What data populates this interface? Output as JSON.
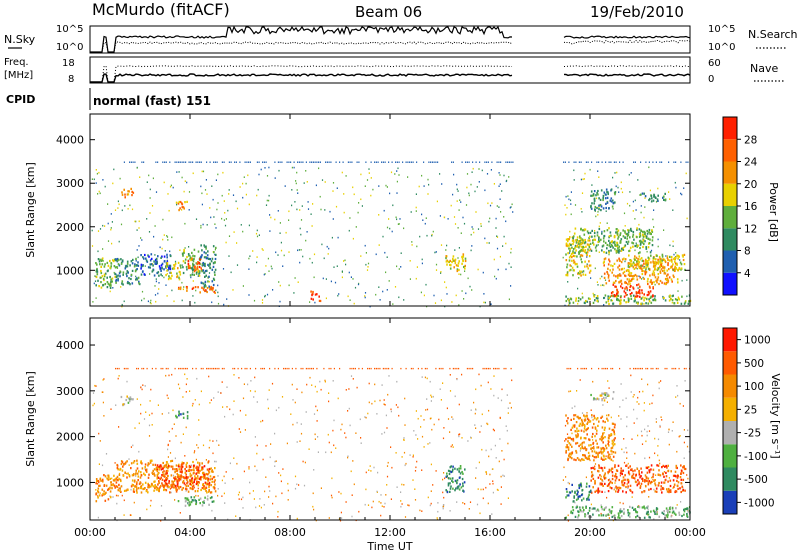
{
  "header": {
    "station": "McMurdo (fitACF)",
    "beam": "Beam 06",
    "date": "19/Feb/2010"
  },
  "strips": {
    "nsky_label": "N.Sky",
    "nsky_ticks": [
      "10^5",
      "10^0"
    ],
    "nsearch_label": "N.Search",
    "nsearch_ticks": [
      "10^5",
      "10^0"
    ],
    "freq_label": "Freq.",
    "freq_unit": "[MHz]",
    "freq_ticks": [
      "18",
      "8"
    ],
    "nave_label": "Nave",
    "nave_ticks": [
      "60",
      "0"
    ],
    "cpid_label": "CPID",
    "cpid_value": "normal (fast) 151"
  },
  "chart_data": [
    {
      "type": "heatmap",
      "name": "power",
      "ylabel": "Slant Range [km]",
      "ylim": [
        180,
        4590
      ],
      "yticks": [
        "1000",
        "2000",
        "3000",
        "4000"
      ],
      "xlabel": "",
      "colorbar": {
        "label": "Power [dB]",
        "ticks": [
          "4",
          "8",
          "12",
          "16",
          "20",
          "24",
          "28"
        ],
        "colors": [
          "#1010ff",
          "#1f5fb0",
          "#2f8a60",
          "#5fae3c",
          "#e8d000",
          "#f59000",
          "#ff6000",
          "#ff2000"
        ]
      },
      "regions": [
        {
          "t": [
            0.2,
            1.0
          ],
          "r": [
            600,
            1300
          ],
          "level": 3
        },
        {
          "t": [
            1.0,
            2.0
          ],
          "r": [
            700,
            1300
          ],
          "level": 2
        },
        {
          "t": [
            1.2,
            1.7
          ],
          "r": [
            2700,
            2900
          ],
          "level": 5
        },
        {
          "t": [
            2.0,
            3.2
          ],
          "r": [
            900,
            1400
          ],
          "level": 1
        },
        {
          "t": [
            3.0,
            3.6
          ],
          "r": [
            800,
            1200
          ],
          "level": 4
        },
        {
          "t": [
            3.4,
            3.9
          ],
          "r": [
            2400,
            2600
          ],
          "level": 5
        },
        {
          "t": [
            3.6,
            4.4
          ],
          "r": [
            900,
            1500
          ],
          "level": 3
        },
        {
          "t": [
            3.9,
            4.5
          ],
          "r": [
            1000,
            1300
          ],
          "level": 6
        },
        {
          "t": [
            4.4,
            5.0
          ],
          "r": [
            600,
            1600
          ],
          "level": 2
        },
        {
          "t": [
            3.5,
            5.0
          ],
          "r": [
            500,
            650
          ],
          "level": 6
        },
        {
          "t": [
            14.2,
            15.0
          ],
          "r": [
            1000,
            1400
          ],
          "level": 4
        },
        {
          "t": [
            19.0,
            20.0
          ],
          "r": [
            900,
            1800
          ],
          "level": 4
        },
        {
          "t": [
            19.2,
            22.5
          ],
          "r": [
            1400,
            2000
          ],
          "level": 3
        },
        {
          "t": [
            20.0,
            21.0
          ],
          "r": [
            2400,
            2900
          ],
          "level": 2
        },
        {
          "t": [
            20.5,
            23.5
          ],
          "r": [
            700,
            1300
          ],
          "level": 5
        },
        {
          "t": [
            21.5,
            23.8
          ],
          "r": [
            1000,
            1400
          ],
          "level": 4
        },
        {
          "t": [
            20.8,
            22.5
          ],
          "r": [
            400,
            700
          ],
          "level": 7
        },
        {
          "t": [
            19.0,
            24.0
          ],
          "r": [
            250,
            450
          ],
          "level": 3
        },
        {
          "t": [
            22.0,
            23.0
          ],
          "r": [
            2600,
            2800
          ],
          "level": 2
        },
        {
          "t": [
            8.8,
            9.2
          ],
          "r": [
            300,
            550
          ],
          "level": 7
        }
      ]
    },
    {
      "type": "heatmap",
      "name": "velocity",
      "ylabel": "Slant Range [km]",
      "ylim": [
        180,
        4590
      ],
      "yticks": [
        "1000",
        "2000",
        "3000",
        "4000"
      ],
      "xlabel": "Time UT",
      "xticks": [
        "00:00",
        "04:00",
        "08:00",
        "12:00",
        "16:00",
        "20:00",
        "00:00"
      ],
      "colorbar": {
        "label": "Velocity [m s⁻¹]",
        "ticks": [
          "1000",
          "500",
          "100",
          "25",
          "-25",
          "-100",
          "-500",
          "-1000"
        ],
        "colors": [
          "#1a3fb8",
          "#2f8a60",
          "#4fb040",
          "#b0b0b0",
          "#f5b000",
          "#f58a00",
          "#ff5a00",
          "#ff1800"
        ]
      },
      "regions": [
        {
          "t": [
            0.2,
            1.0
          ],
          "r": [
            600,
            1200
          ],
          "level": 5
        },
        {
          "t": [
            1.0,
            5.0
          ],
          "r": [
            800,
            1500
          ],
          "level": 5
        },
        {
          "t": [
            2.5,
            4.8
          ],
          "r": [
            900,
            1400
          ],
          "level": 6
        },
        {
          "t": [
            3.4,
            3.9
          ],
          "r": [
            2400,
            2600
          ],
          "level": 1
        },
        {
          "t": [
            1.2,
            1.7
          ],
          "r": [
            2700,
            2900
          ],
          "level": 3
        },
        {
          "t": [
            3.5,
            5.0
          ],
          "r": [
            500,
            700
          ],
          "level": 2
        },
        {
          "t": [
            14.2,
            15.0
          ],
          "r": [
            800,
            1400
          ],
          "level": 1
        },
        {
          "t": [
            19.0,
            21.0
          ],
          "r": [
            1500,
            2500
          ],
          "level": 5
        },
        {
          "t": [
            20.0,
            23.8
          ],
          "r": [
            800,
            1400
          ],
          "level": 6
        },
        {
          "t": [
            19.0,
            24.0
          ],
          "r": [
            250,
            500
          ],
          "level": 2
        },
        {
          "t": [
            20.0,
            21.0
          ],
          "r": [
            2800,
            3000
          ],
          "level": 3
        },
        {
          "t": [
            19.0,
            20.0
          ],
          "r": [
            600,
            1000
          ],
          "level": 1
        }
      ]
    }
  ]
}
